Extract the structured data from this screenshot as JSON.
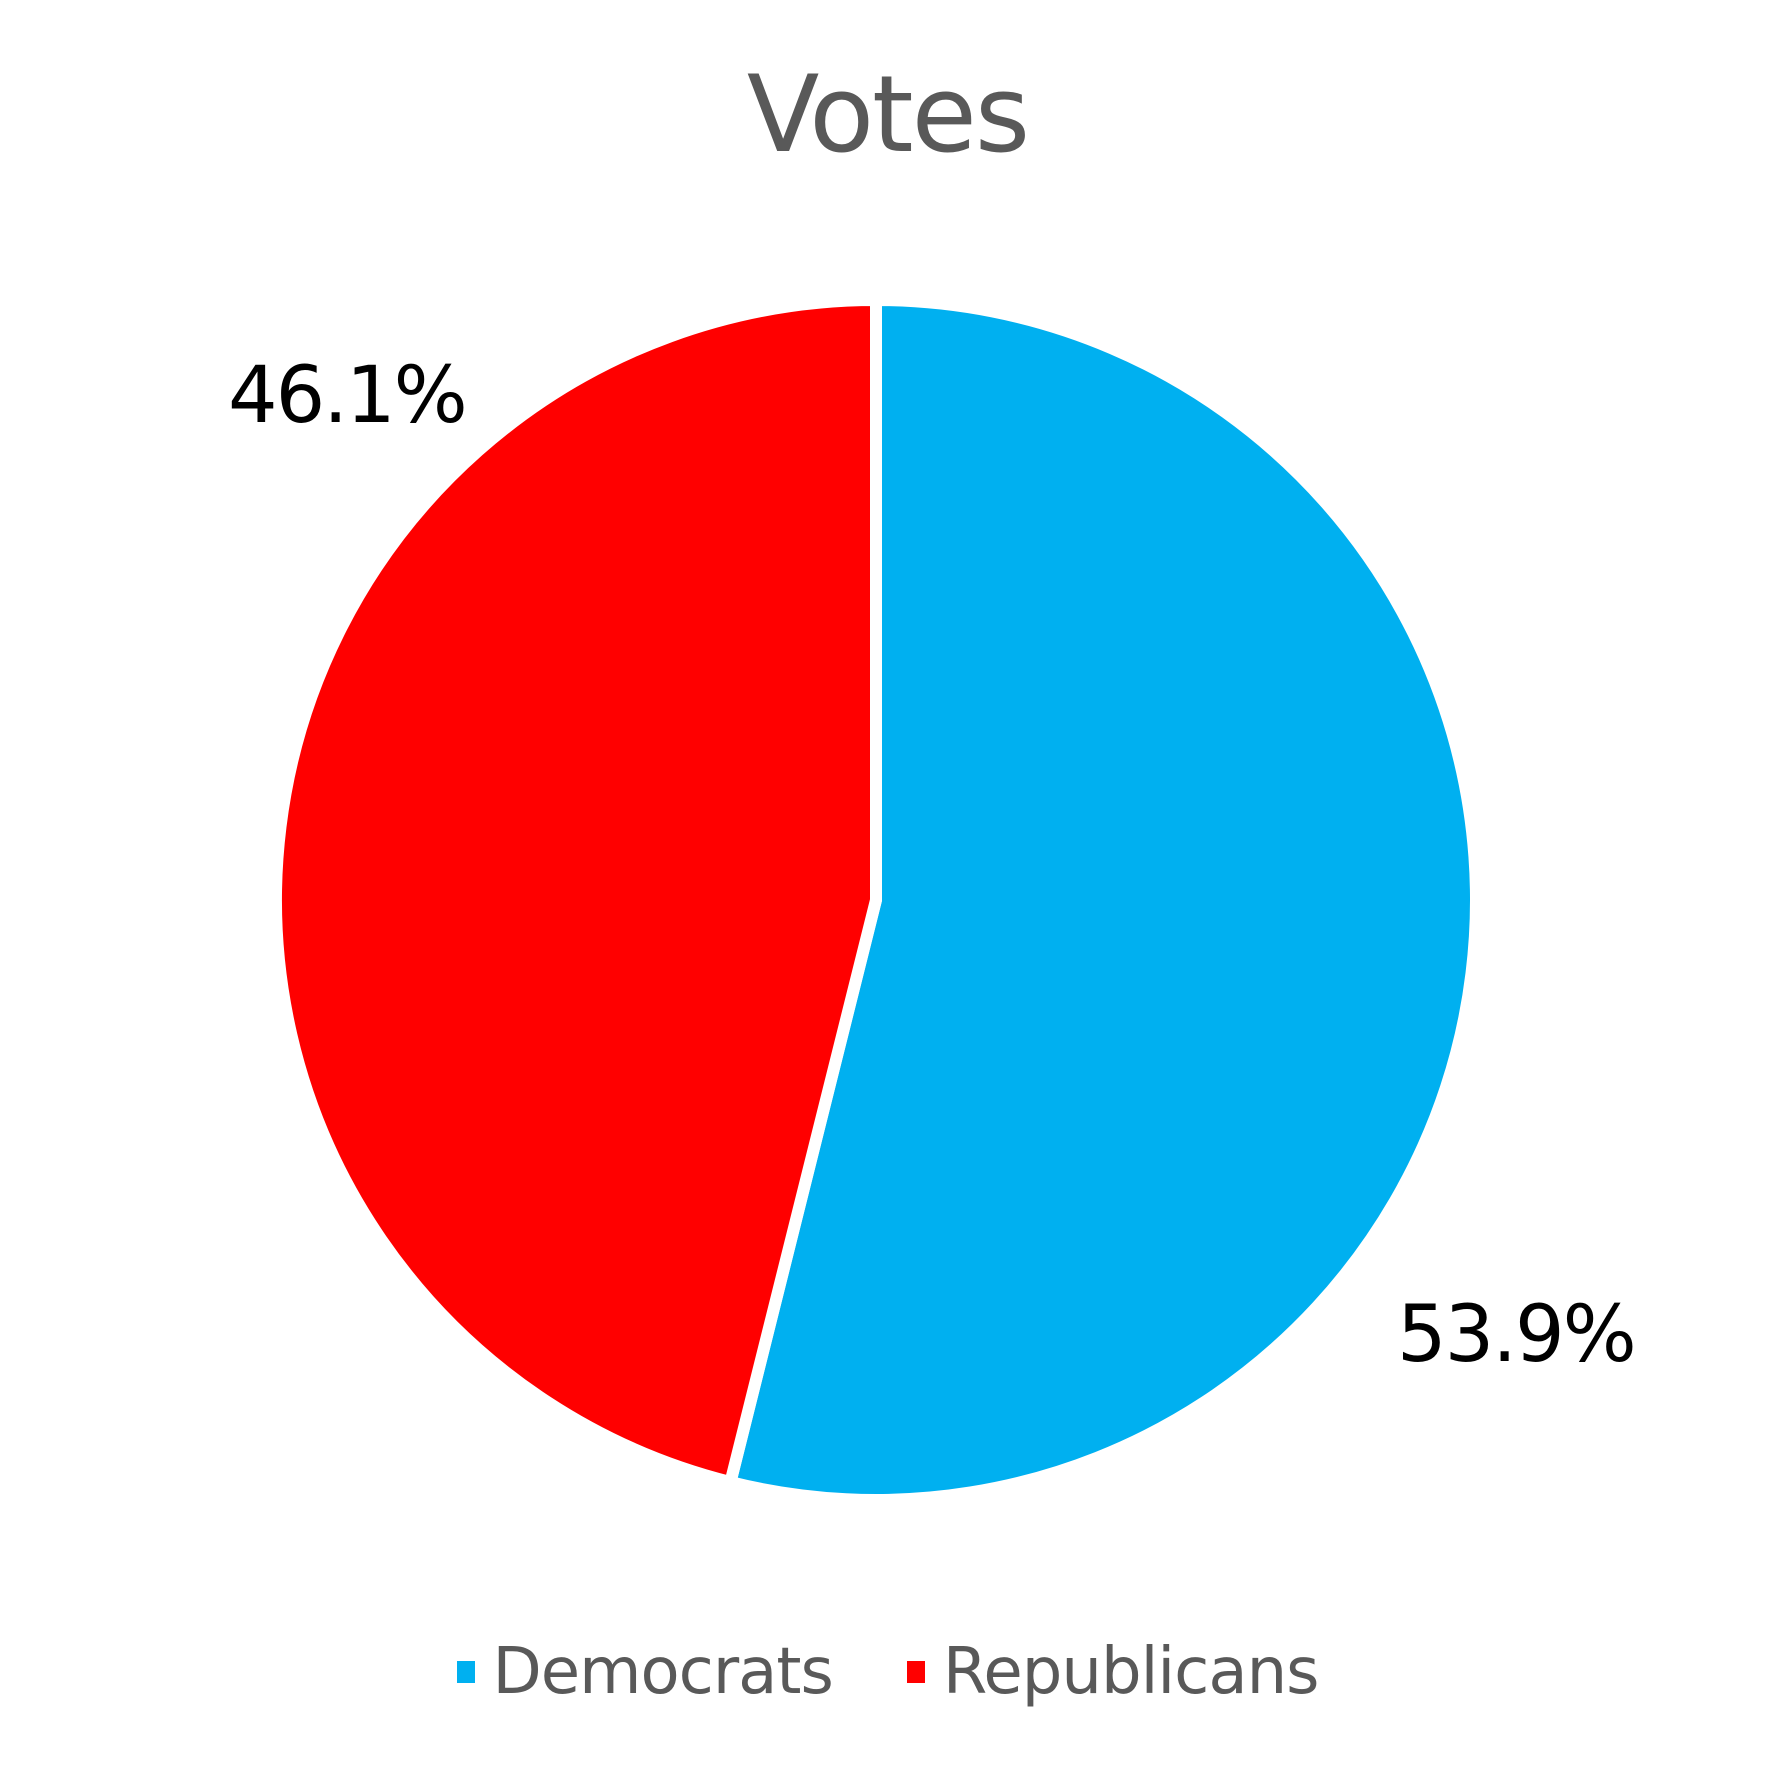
{
  "chart_data": {
    "type": "pie",
    "title": "Votes",
    "categories": [
      "Democrats",
      "Republicans"
    ],
    "values": [
      53.9,
      46.1
    ],
    "value_format": "percent",
    "colors": [
      "#00B0F0",
      "#FF0000"
    ],
    "data_labels": [
      "53.9%",
      "46.1%"
    ],
    "legend_position": "bottom",
    "start_angle_deg": 0,
    "direction": "clockwise"
  },
  "title": "Votes",
  "slices": [
    {
      "name": "Democrats",
      "value": 53.9,
      "label": "53.9%",
      "color": "#00B0F0"
    },
    {
      "name": "Republicans",
      "value": 46.1,
      "label": "46.1%",
      "color": "#FF0000"
    }
  ],
  "legend": {
    "items": [
      {
        "label": "Democrats",
        "color": "#00B0F0"
      },
      {
        "label": "Republicans",
        "color": "#FF0000"
      }
    ]
  }
}
